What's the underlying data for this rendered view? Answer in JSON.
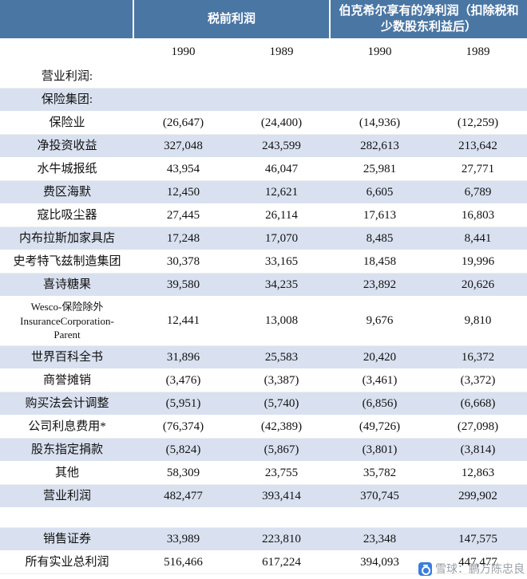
{
  "colors": {
    "header_bg": "#4A76A4",
    "row_alt_bg": "#D9E1F0",
    "watermark_icon_bg": "#3B7DDD",
    "watermark_text": "#9AA0A6"
  },
  "table": {
    "col_groups": [
      {
        "label": "税前利润"
      },
      {
        "label": "伯克希尔享有的净利润（扣除税和少数股东利益后）"
      }
    ],
    "year_headers": [
      "1990",
      "1989",
      "1990",
      "1989"
    ],
    "rows": [
      {
        "label": "营业利润:",
        "values": [
          "",
          "",
          "",
          ""
        ]
      },
      {
        "label": "保险集团:",
        "values": [
          "",
          "",
          "",
          ""
        ]
      },
      {
        "label": "保险业",
        "values": [
          "(26,647)",
          "(24,400)",
          "(14,936)",
          "(12,259)"
        ]
      },
      {
        "label": "净投资收益",
        "values": [
          "327,048",
          "243,599",
          "282,613",
          "213,642"
        ]
      },
      {
        "label": "水牛城报纸",
        "values": [
          "43,954",
          "46,047",
          "25,981",
          "27,771"
        ]
      },
      {
        "label": "费区海默",
        "values": [
          "12,450",
          "12,621",
          "6,605",
          "6,789"
        ]
      },
      {
        "label": "寇比吸尘器",
        "values": [
          "27,445",
          "26,114",
          "17,613",
          "16,803"
        ]
      },
      {
        "label": "内布拉斯加家具店",
        "values": [
          "17,248",
          "17,070",
          "8,485",
          "8,441"
        ]
      },
      {
        "label": "史考特飞兹制造集团",
        "values": [
          "30,378",
          "33,165",
          "18,458",
          "19,996"
        ]
      },
      {
        "label": "喜诗糖果",
        "values": [
          "39,580",
          "34,235",
          "23,892",
          "20,626"
        ]
      },
      {
        "label": "Wesco-保险除外\nInsuranceCorporation-\nParent",
        "values": [
          "12,441",
          "13,008",
          "9,676",
          "9,810"
        ]
      },
      {
        "label": "世界百科全书",
        "values": [
          "31,896",
          "25,583",
          "20,420",
          "16,372"
        ]
      },
      {
        "label": "商誉摊销",
        "values": [
          "(3,476)",
          "(3,387)",
          "(3,461)",
          "(3,372)"
        ]
      },
      {
        "label": "购买法会计调整",
        "values": [
          "(5,951)",
          "(5,740)",
          "(6,856)",
          "(6,668)"
        ]
      },
      {
        "label": "公司利息费用*",
        "values": [
          "(76,374)",
          "(42,389)",
          "(49,726)",
          "(27,098)"
        ]
      },
      {
        "label": "股东指定捐款",
        "values": [
          "(5,824)",
          "(5,867)",
          "(3,801)",
          "(3,814)"
        ]
      },
      {
        "label": "其他",
        "values": [
          "58,309",
          "23,755",
          "35,782",
          "12,863"
        ]
      },
      {
        "label": "营业利润",
        "values": [
          "482,477",
          "393,414",
          "370,745",
          "299,902"
        ]
      },
      {
        "label": "",
        "values": [
          "",
          "",
          "",
          ""
        ]
      },
      {
        "label": "销售证券",
        "values": [
          "33,989",
          "223,810",
          "23,348",
          "147,575"
        ]
      },
      {
        "label": "所有实业总利润",
        "values": [
          "516,466",
          "617,224",
          "394,093",
          "447,477"
        ]
      }
    ]
  },
  "watermark": {
    "text": "雪球：鹏万陈忠良"
  }
}
